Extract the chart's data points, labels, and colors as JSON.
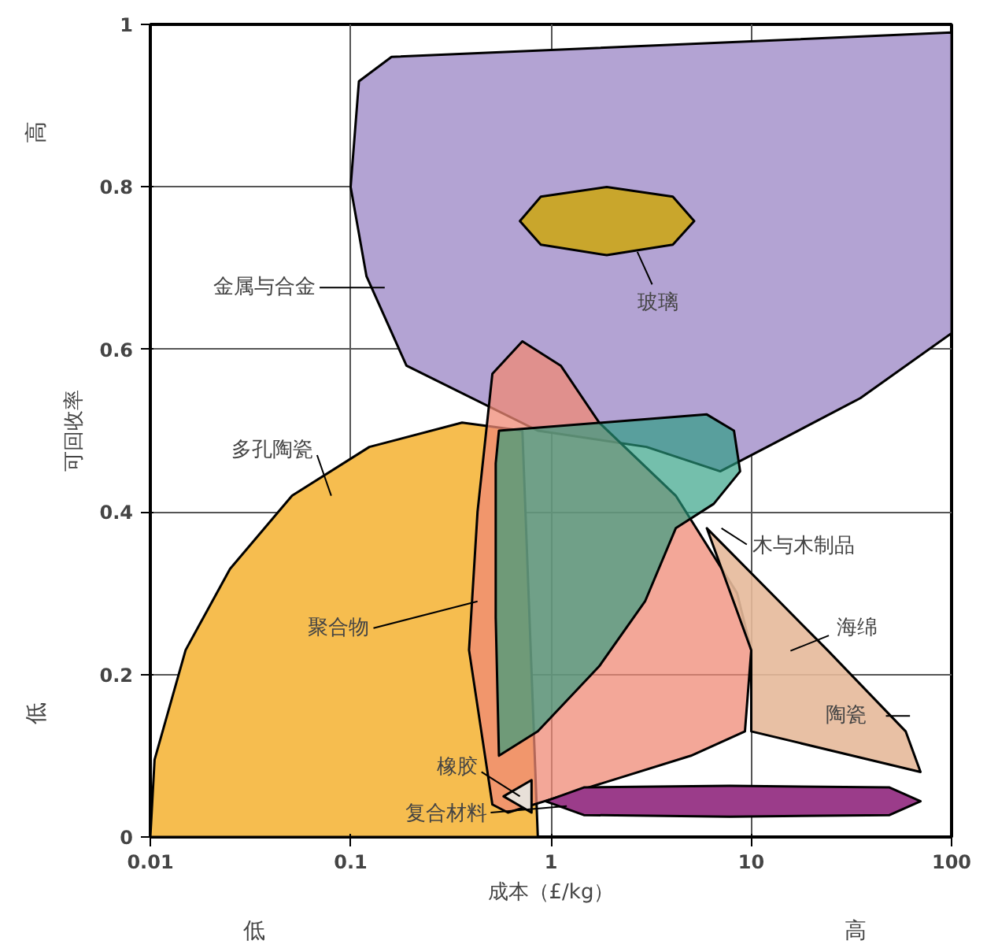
{
  "chart_data": {
    "type": "area",
    "xlabel": "成本（£/kg）",
    "ylabel": "可回收率",
    "log": "x",
    "grid": true,
    "xlim": [
      0.01,
      100
    ],
    "ylim": [
      0,
      1
    ],
    "xticks": [
      0.01,
      0.1,
      1,
      10,
      100
    ],
    "yticks": [
      0,
      0.2,
      0.4,
      0.6,
      0.8,
      1
    ],
    "series": [
      {
        "color": "#b3a3d3",
        "x": [
          0.11,
          0.16,
          100,
          100,
          35,
          12,
          7,
          3,
          0.86,
          0.33,
          0.19,
          0.12,
          0.1
        ],
        "values": [
          0.93,
          0.96,
          0.99,
          0.62,
          0.54,
          0.48,
          0.45,
          0.48,
          0.5,
          null,
          0.58,
          0.69,
          0.8
        ]
      },
      {
        "color": "#c9a62c",
        "x": [
          0.7,
          0.89,
          1.9,
          4.06,
          5.19,
          4.06,
          1.9,
          0.89
        ],
        "values": [
          0.758,
          0.788,
          0.8,
          0.788,
          0.758,
          0.729,
          0.716,
          0.729
        ]
      },
      {
        "color": "#f6bd4f",
        "x": [
          0.01,
          0.0105,
          0.015,
          0.025,
          0.051,
          0.124,
          0.36,
          0.72,
          0.86
        ],
        "values": [
          0,
          0.095,
          0.23,
          0.33,
          0.42,
          0.48,
          0.51,
          0.5,
          0
        ]
      },
      {
        "color": "#ef8a76",
        "x": [
          0.72,
          1.12,
          1.74,
          4.2,
          8.5,
          10,
          9.3,
          5,
          1.46,
          0.61,
          0.51,
          0.39,
          0.43,
          0.51
        ],
        "values": [
          0.61,
          0.58,
          0.51,
          0.42,
          0.3,
          0.23,
          0.13,
          0.1,
          null,
          0.03,
          0.04,
          0.23,
          0.4,
          0.57
        ]
      },
      {
        "color": "#2a9d80",
        "x": [
          0.55,
          6,
          8.2,
          8.8,
          6.5,
          4.2,
          2.95,
          1.74,
          0.86,
          0.55,
          0.53,
          0.53
        ],
        "values": [
          0.5,
          0.52,
          0.5,
          0.45,
          0.41,
          0.38,
          0.29,
          0.21,
          0.13,
          0.1,
          0.27,
          0.46
        ]
      },
      {
        "color": "#e5b99a",
        "x": [
          6,
          24,
          59,
          70,
          null,
          null,
          null,
          10,
          10
        ],
        "values": [
          0.38,
          0.23,
          0.13,
          0.08,
          null,
          null,
          null,
          0.13,
          0.23
        ]
      },
      {
        "color": "#e8e0d8",
        "x": [
          0.58,
          0.8,
          null,
          0.8
        ],
        "values": [
          0.05,
          0.07,
          null,
          0.03
        ]
      },
      {
        "color": "#9b3c8a",
        "x": [
          0.94,
          1.46,
          7.8,
          49,
          70,
          49,
          7.8,
          1.46
        ],
        "values": [
          0.044,
          0.061,
          0.063,
          0.061,
          0.044,
          0.027,
          0.025,
          0.027
        ]
      }
    ],
    "annotations": [
      "金属与合金",
      {
        "text": "玻璃",
        "x": 2.7,
        "y": 0.72
      },
      "多孔陶瓷",
      "木与木制品",
      {
        "text": "聚合物",
        "x": 0.43,
        "y": 0.29
      },
      "海绵",
      "陶瓷",
      {
        "text": "橡胶",
        "x": 0.7,
        "y": 0.05
      },
      "复合材料",
      "高",
      "低",
      "低",
      "高"
    ]
  }
}
